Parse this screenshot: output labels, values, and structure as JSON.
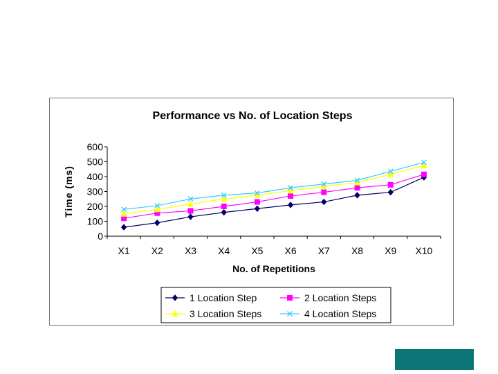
{
  "chart_data": {
    "type": "line",
    "title": "Performance vs No. of Location Steps",
    "xlabel": "No. of Repetitions",
    "ylabel": "Time (ms)",
    "categories": [
      "X1",
      "X2",
      "X3",
      "X4",
      "X5",
      "X6",
      "X7",
      "X8",
      "X9",
      "X10"
    ],
    "ylim": [
      0,
      600
    ],
    "yticks": [
      0,
      100,
      200,
      300,
      400,
      500,
      600
    ],
    "grid": false,
    "legend_position": "bottom",
    "series": [
      {
        "name": "1 Location Step",
        "color": "#000066",
        "marker": "diamond",
        "values": [
          60,
          90,
          130,
          160,
          185,
          210,
          230,
          275,
          295,
          395
        ]
      },
      {
        "name": "2 Location Steps",
        "color": "#ff00ff",
        "marker": "square",
        "values": [
          120,
          155,
          170,
          200,
          230,
          270,
          295,
          325,
          345,
          415
        ]
      },
      {
        "name": "3 Location Steps",
        "color": "#ffff00",
        "marker": "triangle",
        "values": [
          150,
          180,
          215,
          250,
          275,
          305,
          335,
          360,
          415,
          475
        ]
      },
      {
        "name": "4 Location Steps",
        "color": "#33ccff",
        "marker": "x",
        "values": [
          180,
          205,
          250,
          275,
          290,
          325,
          350,
          375,
          435,
          495
        ]
      }
    ]
  },
  "decor": {
    "accent_color": "#0c7575"
  }
}
